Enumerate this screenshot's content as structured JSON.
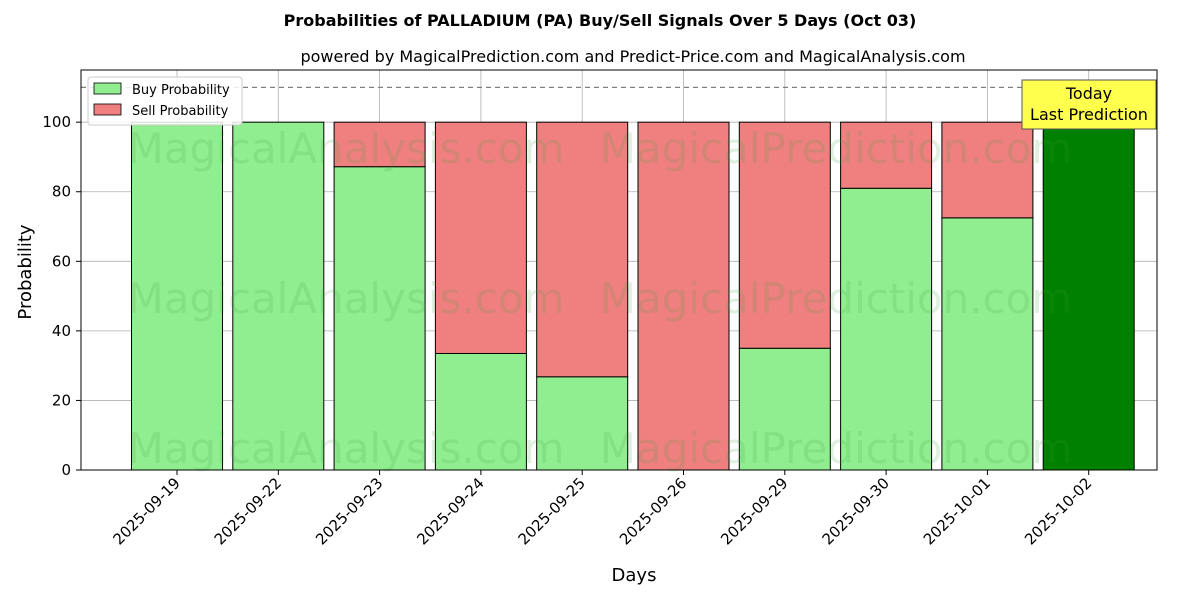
{
  "chart_data": {
    "type": "bar",
    "stacked": true,
    "title": "Probabilities of PALLADIUM (PA) Buy/Sell Signals Over 5 Days (Oct 03)",
    "subtitle": "powered by MagicalPrediction.com and Predict-Price.com and MagicalAnalysis.com",
    "xlabel": "Days",
    "ylabel": "Probability",
    "ylim": [
      0,
      115
    ],
    "yticks": [
      0,
      20,
      40,
      60,
      80,
      100
    ],
    "reference_line": 110,
    "grid": true,
    "legend_position": "top-left",
    "categories": [
      "2025-09-19",
      "2025-09-22",
      "2025-09-23",
      "2025-09-24",
      "2025-09-25",
      "2025-09-26",
      "2025-09-29",
      "2025-09-30",
      "2025-10-01",
      "2025-10-02"
    ],
    "series": [
      {
        "name": "Buy Probability",
        "color": "#90ee90",
        "values": [
          100,
          100,
          87.2,
          33.5,
          26.8,
          0,
          35,
          81,
          72.5,
          100
        ]
      },
      {
        "name": "Sell Probability",
        "color": "#f08080",
        "values": [
          0,
          0,
          12.8,
          66.5,
          73.2,
          100,
          65,
          19,
          27.5,
          0
        ]
      }
    ],
    "highlight": {
      "index": 9,
      "color": "#008000"
    },
    "annotation": {
      "line1": "Today",
      "line2": "Last Prediction",
      "color": "#ffff4d"
    },
    "watermarks": [
      "MagicalAnalysis.com",
      "MagicalPrediction.com"
    ]
  }
}
